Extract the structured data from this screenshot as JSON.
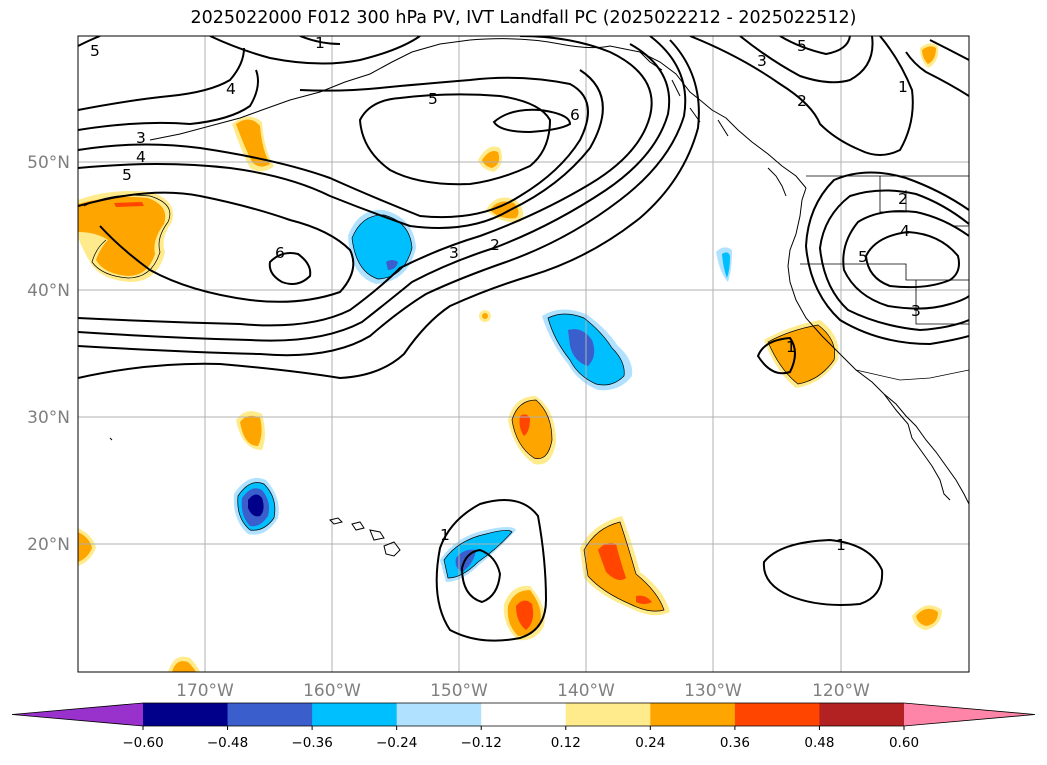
{
  "title": "2025022000 F012 300 hPa PV, IVT Landfall PC (2025022212 - 2025022512)",
  "map": {
    "lat_labels": [
      "50°N",
      "40°N",
      "30°N",
      "20°N"
    ],
    "lon_labels": [
      "170°W",
      "160°W",
      "150°W",
      "140°W",
      "130°W",
      "120°W"
    ],
    "grid": true,
    "extent": {
      "lon": [
        -180,
        -110
      ],
      "lat": [
        10,
        60
      ]
    }
  },
  "colorbar": {
    "ticks": [
      "−0.60",
      "−0.48",
      "−0.36",
      "−0.24",
      "−0.12",
      "0.12",
      "0.24",
      "0.36",
      "0.48",
      "0.60"
    ],
    "levels": [
      -0.6,
      -0.48,
      -0.36,
      -0.24,
      -0.12,
      0.12,
      0.24,
      0.36,
      0.48,
      0.6
    ],
    "colors": [
      "#9932cc",
      "#00008b",
      "#3a5fcd",
      "#00bfff",
      "#b0e2ff",
      "#ffffff",
      "#ffeb8c",
      "#ffa500",
      "#ff4500",
      "#b22222",
      "#ff85a8"
    ],
    "extend": "both"
  },
  "pv_contour_labels": [
    "5",
    "1",
    "5",
    "3",
    "1",
    "4",
    "2",
    "5",
    "6",
    "3",
    "4",
    "5",
    "3",
    "2",
    "2",
    "4",
    "6",
    "5",
    "3",
    "1",
    "1",
    "1"
  ]
}
